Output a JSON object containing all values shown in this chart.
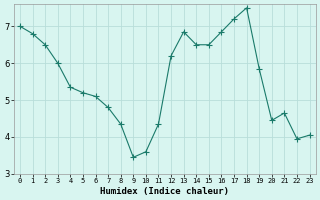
{
  "x": [
    0,
    1,
    2,
    3,
    4,
    5,
    6,
    7,
    8,
    9,
    10,
    11,
    12,
    13,
    14,
    15,
    16,
    17,
    18,
    19,
    20,
    21,
    22,
    23
  ],
  "y": [
    7.0,
    6.8,
    6.5,
    6.0,
    5.35,
    5.2,
    5.1,
    4.8,
    4.35,
    3.45,
    3.6,
    4.35,
    6.2,
    6.85,
    6.5,
    6.5,
    6.85,
    7.2,
    7.5,
    5.85,
    4.45,
    4.65,
    3.95,
    4.05
  ],
  "line_color": "#1a7a6a",
  "marker": "D",
  "marker_size": 2,
  "bg_color": "#d8f5f0",
  "grid_color": "#b8deda",
  "xlabel": "Humidex (Indice chaleur)",
  "ylim": [
    3.0,
    7.6
  ],
  "xlim": [
    -0.5,
    23.5
  ],
  "yticks": [
    3,
    4,
    5,
    6,
    7
  ],
  "xtick_labels": [
    "0",
    "1",
    "2",
    "3",
    "4",
    "5",
    "6",
    "7",
    "8",
    "9",
    "10",
    "11",
    "12",
    "13",
    "14",
    "15",
    "16",
    "17",
    "18",
    "19",
    "20",
    "21",
    "22",
    "23"
  ],
  "xlabel_fontsize": 6.5,
  "xlabel_fontweight": "bold",
  "ytick_fontsize": 6,
  "xtick_fontsize": 5
}
